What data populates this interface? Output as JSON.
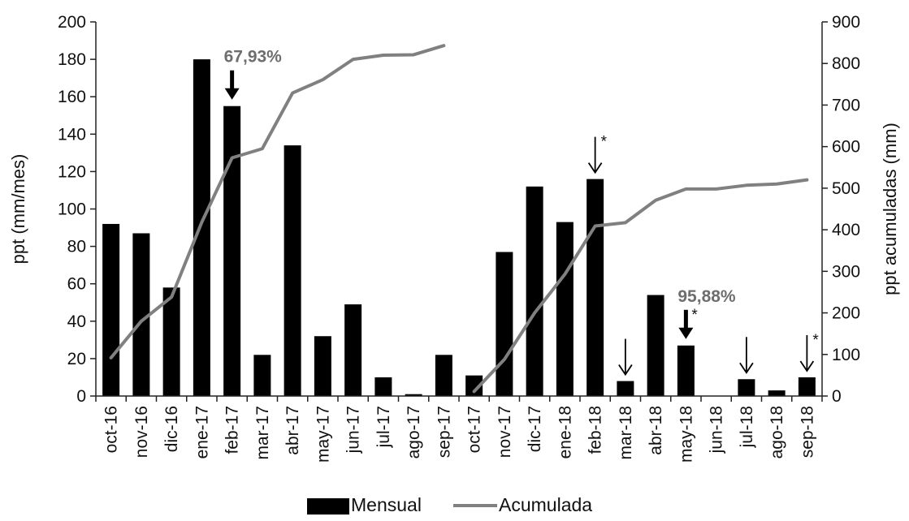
{
  "chart_data": {
    "type": "bar+line",
    "title": "",
    "categories": [
      "oct-16",
      "nov-16",
      "dic-16",
      "ene-17",
      "feb-17",
      "mar-17",
      "abr-17",
      "may-17",
      "jun-17",
      "jul-17",
      "ago-17",
      "sep-17",
      "oct-17",
      "nov-17",
      "dic-17",
      "ene-18",
      "feb-18",
      "mar-18",
      "abr-18",
      "may-18",
      "jun-18",
      "jul-18",
      "ago-18",
      "sep-18"
    ],
    "series": [
      {
        "name": "Mensual",
        "kind": "bar",
        "axis": "left",
        "color": "#000000",
        "values": [
          92,
          87,
          58,
          180,
          155,
          22,
          134,
          32,
          49,
          10,
          1,
          22,
          11,
          77,
          112,
          93,
          116,
          8,
          54,
          27,
          0,
          9,
          3,
          10
        ]
      },
      {
        "name": "Acumulada",
        "kind": "line",
        "axis": "right",
        "color": "#808080",
        "segments": [
          {
            "start": 0,
            "values": [
              92,
              180,
              238,
              418,
              573,
              595,
              729,
              761,
              810,
              820,
              821,
              843
            ]
          },
          {
            "start": 12,
            "values": [
              11,
              88,
              200,
              293,
              409,
              417,
              471,
              498,
              498,
              507,
              510,
              520
            ]
          }
        ]
      }
    ],
    "ylabel_left": "ppt (mm/mes)",
    "ylabel_right": "ppt acumuladas (mm)",
    "ylim_left": [
      0,
      200
    ],
    "ylim_right": [
      0,
      900
    ],
    "yticks_left": [
      0,
      20,
      40,
      60,
      80,
      100,
      120,
      140,
      160,
      180,
      200
    ],
    "yticks_right": [
      0,
      100,
      200,
      300,
      400,
      500,
      600,
      700,
      800,
      900
    ],
    "grid": false,
    "legend_position": "bottom",
    "annotations": [
      {
        "index": 4,
        "text": "67,93%",
        "arrow": "bold",
        "star": false
      },
      {
        "index": 16,
        "text": "",
        "arrow": "thin",
        "star": true
      },
      {
        "index": 17,
        "text": "",
        "arrow": "thin",
        "star": false
      },
      {
        "index": 19,
        "text": "95,88%",
        "arrow": "bold",
        "star": true
      },
      {
        "index": 21,
        "text": "",
        "arrow": "thin",
        "star": false
      },
      {
        "index": 23,
        "text": "",
        "arrow": "thin",
        "star": true
      }
    ]
  }
}
